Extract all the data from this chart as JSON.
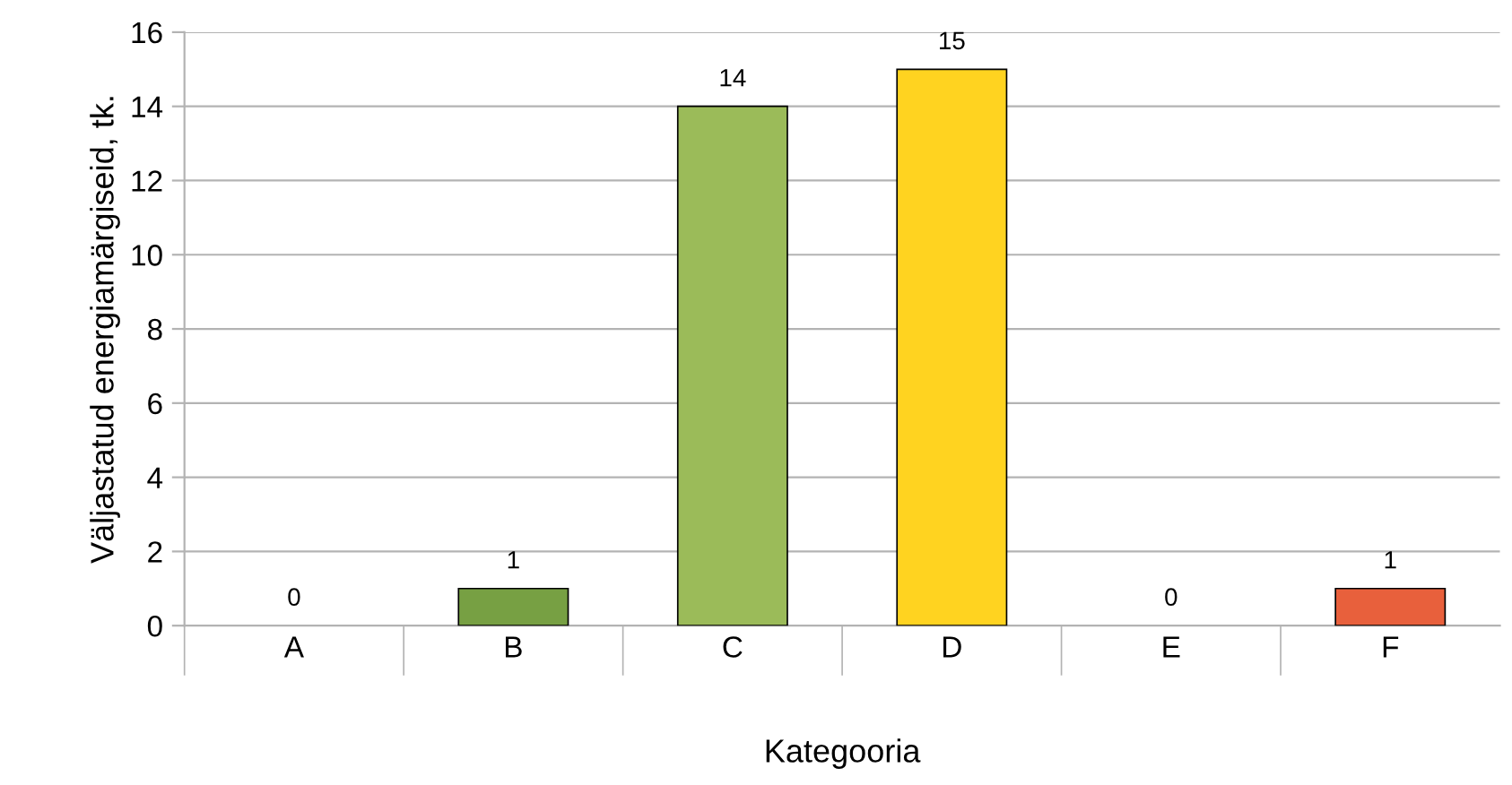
{
  "chart_data": {
    "type": "bar",
    "xlabel": "Kategooria",
    "ylabel": "Väljastatud energiamärgiseid, tk.",
    "categories": [
      "A",
      "B",
      "C",
      "D",
      "E",
      "F"
    ],
    "values": [
      0,
      1,
      14,
      15,
      0,
      1
    ],
    "colors": [
      null,
      "#77a043",
      "#9bbb59",
      "#ffd320",
      null,
      "#e8603c"
    ],
    "ylim": [
      0,
      16
    ],
    "yticks": [
      0,
      2,
      4,
      6,
      8,
      10,
      12,
      14,
      16
    ],
    "grid": "y",
    "data_labels": true,
    "legend": false
  }
}
